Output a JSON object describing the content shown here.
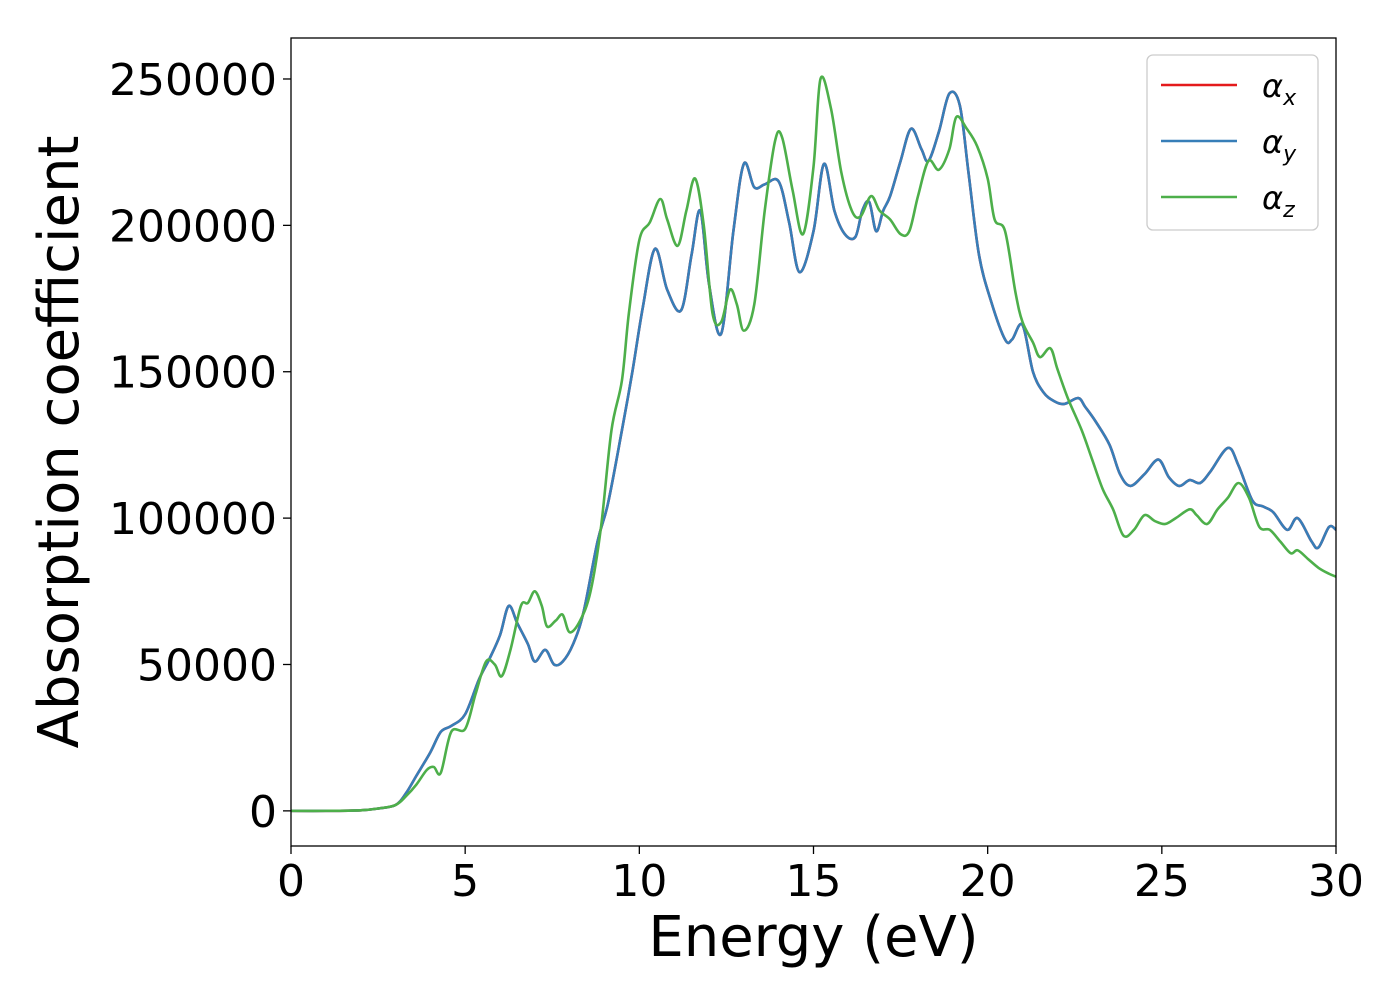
{
  "chart_data": {
    "type": "line",
    "title": "",
    "xlabel": "Energy (eV)",
    "ylabel": "Absorption coefficient",
    "xlim": [
      0,
      30
    ],
    "ylim": [
      -12000,
      264000
    ],
    "xticks": [
      0,
      5,
      10,
      15,
      20,
      25,
      30
    ],
    "yticks": [
      0,
      50000,
      100000,
      150000,
      200000,
      250000
    ],
    "xtick_labels": [
      "0",
      "5",
      "10",
      "15",
      "20",
      "25",
      "30"
    ],
    "ytick_labels": [
      "0",
      "50000",
      "100000",
      "150000",
      "200000",
      "250000"
    ],
    "grid": false,
    "legend_position": "top-right",
    "series": [
      {
        "name": "α_x",
        "legend_base": "α",
        "legend_sub": "x",
        "color": "#e41a1c",
        "x": [
          0,
          1,
          2,
          2.5,
          3,
          3.3,
          3.6,
          4,
          4.3,
          4.6,
          5,
          5.4,
          5.7,
          6,
          6.25,
          6.5,
          6.8,
          7.0,
          7.3,
          7.55,
          7.8,
          8.1,
          8.4,
          8.8,
          9.1,
          9.5,
          9.8,
          10.1,
          10.45,
          10.8,
          11.2,
          11.5,
          11.75,
          12.0,
          12.35,
          12.7,
          13.0,
          13.3,
          13.6,
          14.0,
          14.3,
          14.6,
          15.0,
          15.3,
          15.6,
          15.9,
          16.2,
          16.4,
          16.6,
          16.8,
          17.0,
          17.2,
          17.5,
          17.8,
          18.1,
          18.3,
          18.6,
          18.9,
          19.2,
          19.45,
          19.75,
          20.1,
          20.5,
          20.7,
          21.0,
          21.3,
          21.6,
          21.9,
          22.2,
          22.6,
          22.8,
          23.1,
          23.5,
          23.8,
          24.1,
          24.5,
          24.9,
          25.2,
          25.5,
          25.8,
          26.1,
          26.4,
          26.9,
          27.2,
          27.6,
          27.9,
          28.2,
          28.6,
          28.9,
          29.3,
          29.5,
          29.8,
          30
        ],
        "y": [
          0,
          0,
          200,
          800,
          2000,
          6000,
          12000,
          20000,
          27000,
          29000,
          33000,
          45000,
          52000,
          60000,
          70000,
          64000,
          57000,
          51000,
          55000,
          50000,
          51000,
          57000,
          68000,
          92000,
          105000,
          130000,
          150000,
          172000,
          192000,
          178000,
          171000,
          190000,
          205000,
          180000,
          163000,
          198000,
          221000,
          213000,
          214000,
          215000,
          201000,
          184000,
          198000,
          221000,
          205000,
          197000,
          196000,
          205000,
          208000,
          198000,
          205000,
          210000,
          222000,
          233000,
          226000,
          222000,
          232000,
          245000,
          241000,
          218000,
          190000,
          174000,
          161000,
          161000,
          166000,
          150000,
          143000,
          140000,
          139000,
          141000,
          138000,
          133000,
          125000,
          115000,
          111000,
          115000,
          120000,
          114000,
          111000,
          113000,
          112000,
          116000,
          124000,
          118000,
          106000,
          104000,
          102000,
          96000,
          100000,
          92000,
          90000,
          97000,
          96000
        ]
      },
      {
        "name": "α_y",
        "legend_base": "α",
        "legend_sub": "y",
        "color": "#377eb8",
        "x": [
          0,
          1,
          2,
          2.5,
          3,
          3.3,
          3.6,
          4,
          4.3,
          4.6,
          5,
          5.4,
          5.7,
          6,
          6.25,
          6.5,
          6.8,
          7.0,
          7.3,
          7.55,
          7.8,
          8.1,
          8.4,
          8.8,
          9.1,
          9.5,
          9.8,
          10.1,
          10.45,
          10.8,
          11.2,
          11.5,
          11.75,
          12.0,
          12.35,
          12.7,
          13.0,
          13.3,
          13.6,
          14.0,
          14.3,
          14.6,
          15.0,
          15.3,
          15.6,
          15.9,
          16.2,
          16.4,
          16.6,
          16.8,
          17.0,
          17.2,
          17.5,
          17.8,
          18.1,
          18.3,
          18.6,
          18.9,
          19.2,
          19.45,
          19.75,
          20.1,
          20.5,
          20.7,
          21.0,
          21.3,
          21.6,
          21.9,
          22.2,
          22.6,
          22.8,
          23.1,
          23.5,
          23.8,
          24.1,
          24.5,
          24.9,
          25.2,
          25.5,
          25.8,
          26.1,
          26.4,
          26.9,
          27.2,
          27.6,
          27.9,
          28.2,
          28.6,
          28.9,
          29.3,
          29.5,
          29.8,
          30
        ],
        "y": [
          0,
          0,
          200,
          800,
          2000,
          6000,
          12000,
          20000,
          27000,
          29000,
          33000,
          45000,
          52000,
          60000,
          70000,
          64000,
          57000,
          51000,
          55000,
          50000,
          51000,
          57000,
          68000,
          92000,
          105000,
          130000,
          150000,
          172000,
          192000,
          178000,
          171000,
          190000,
          205000,
          180000,
          163000,
          198000,
          221000,
          213000,
          214000,
          215000,
          201000,
          184000,
          198000,
          221000,
          205000,
          197000,
          196000,
          205000,
          208000,
          198000,
          205000,
          210000,
          222000,
          233000,
          226000,
          222000,
          232000,
          245000,
          241000,
          218000,
          190000,
          174000,
          161000,
          161000,
          166000,
          150000,
          143000,
          140000,
          139000,
          141000,
          138000,
          133000,
          125000,
          115000,
          111000,
          115000,
          120000,
          114000,
          111000,
          113000,
          112000,
          116000,
          124000,
          118000,
          106000,
          104000,
          102000,
          96000,
          100000,
          92000,
          90000,
          97000,
          96000
        ]
      },
      {
        "name": "α_z",
        "legend_base": "α",
        "legend_sub": "z",
        "color": "#4daf4a",
        "x": [
          0,
          1,
          2,
          2.5,
          3,
          3.3,
          3.6,
          3.9,
          4.1,
          4.3,
          4.6,
          5.0,
          5.3,
          5.6,
          5.85,
          6.05,
          6.3,
          6.6,
          6.8,
          7.0,
          7.2,
          7.35,
          7.6,
          7.8,
          8.0,
          8.3,
          8.6,
          8.9,
          9.2,
          9.5,
          9.7,
          10.0,
          10.3,
          10.6,
          10.8,
          11.1,
          11.35,
          11.6,
          11.85,
          12.1,
          12.35,
          12.6,
          12.8,
          13.0,
          13.3,
          13.6,
          13.9,
          14.1,
          14.4,
          14.7,
          15.0,
          15.2,
          15.5,
          15.8,
          16.1,
          16.35,
          16.65,
          16.9,
          17.2,
          17.5,
          17.75,
          18.0,
          18.3,
          18.6,
          18.9,
          19.1,
          19.4,
          19.7,
          20.0,
          20.2,
          20.5,
          20.8,
          21.0,
          21.3,
          21.5,
          21.8,
          22.0,
          22.3,
          22.7,
          23.0,
          23.3,
          23.6,
          23.9,
          24.2,
          24.5,
          24.8,
          25.1,
          25.4,
          25.8,
          26.0,
          26.3,
          26.6,
          26.9,
          27.2,
          27.5,
          27.8,
          28.1,
          28.4,
          28.7,
          28.9,
          29.2,
          29.5,
          29.8,
          30
        ],
        "y": [
          0,
          0,
          200,
          800,
          2000,
          5000,
          9000,
          14000,
          15000,
          13000,
          27000,
          28000,
          40000,
          51000,
          50000,
          46000,
          55000,
          70000,
          71000,
          75000,
          70000,
          63000,
          65000,
          67000,
          61000,
          65000,
          75000,
          97000,
          130000,
          147000,
          170000,
          195000,
          201000,
          209000,
          202000,
          193000,
          205000,
          216000,
          200000,
          170000,
          167000,
          178000,
          173000,
          164000,
          173000,
          205000,
          229000,
          230000,
          212000,
          197000,
          220000,
          250000,
          240000,
          218000,
          205000,
          203000,
          210000,
          205000,
          202000,
          197000,
          198000,
          210000,
          222000,
          219000,
          226000,
          237000,
          233000,
          227000,
          216000,
          202000,
          198000,
          177000,
          167000,
          160000,
          155000,
          158000,
          151000,
          141000,
          130000,
          120000,
          110000,
          103000,
          94000,
          96000,
          101000,
          99000,
          98000,
          100000,
          103000,
          101000,
          98000,
          103000,
          107000,
          112000,
          107000,
          97000,
          96000,
          92000,
          88000,
          89000,
          86000,
          83000,
          81000,
          80000
        ]
      }
    ]
  }
}
